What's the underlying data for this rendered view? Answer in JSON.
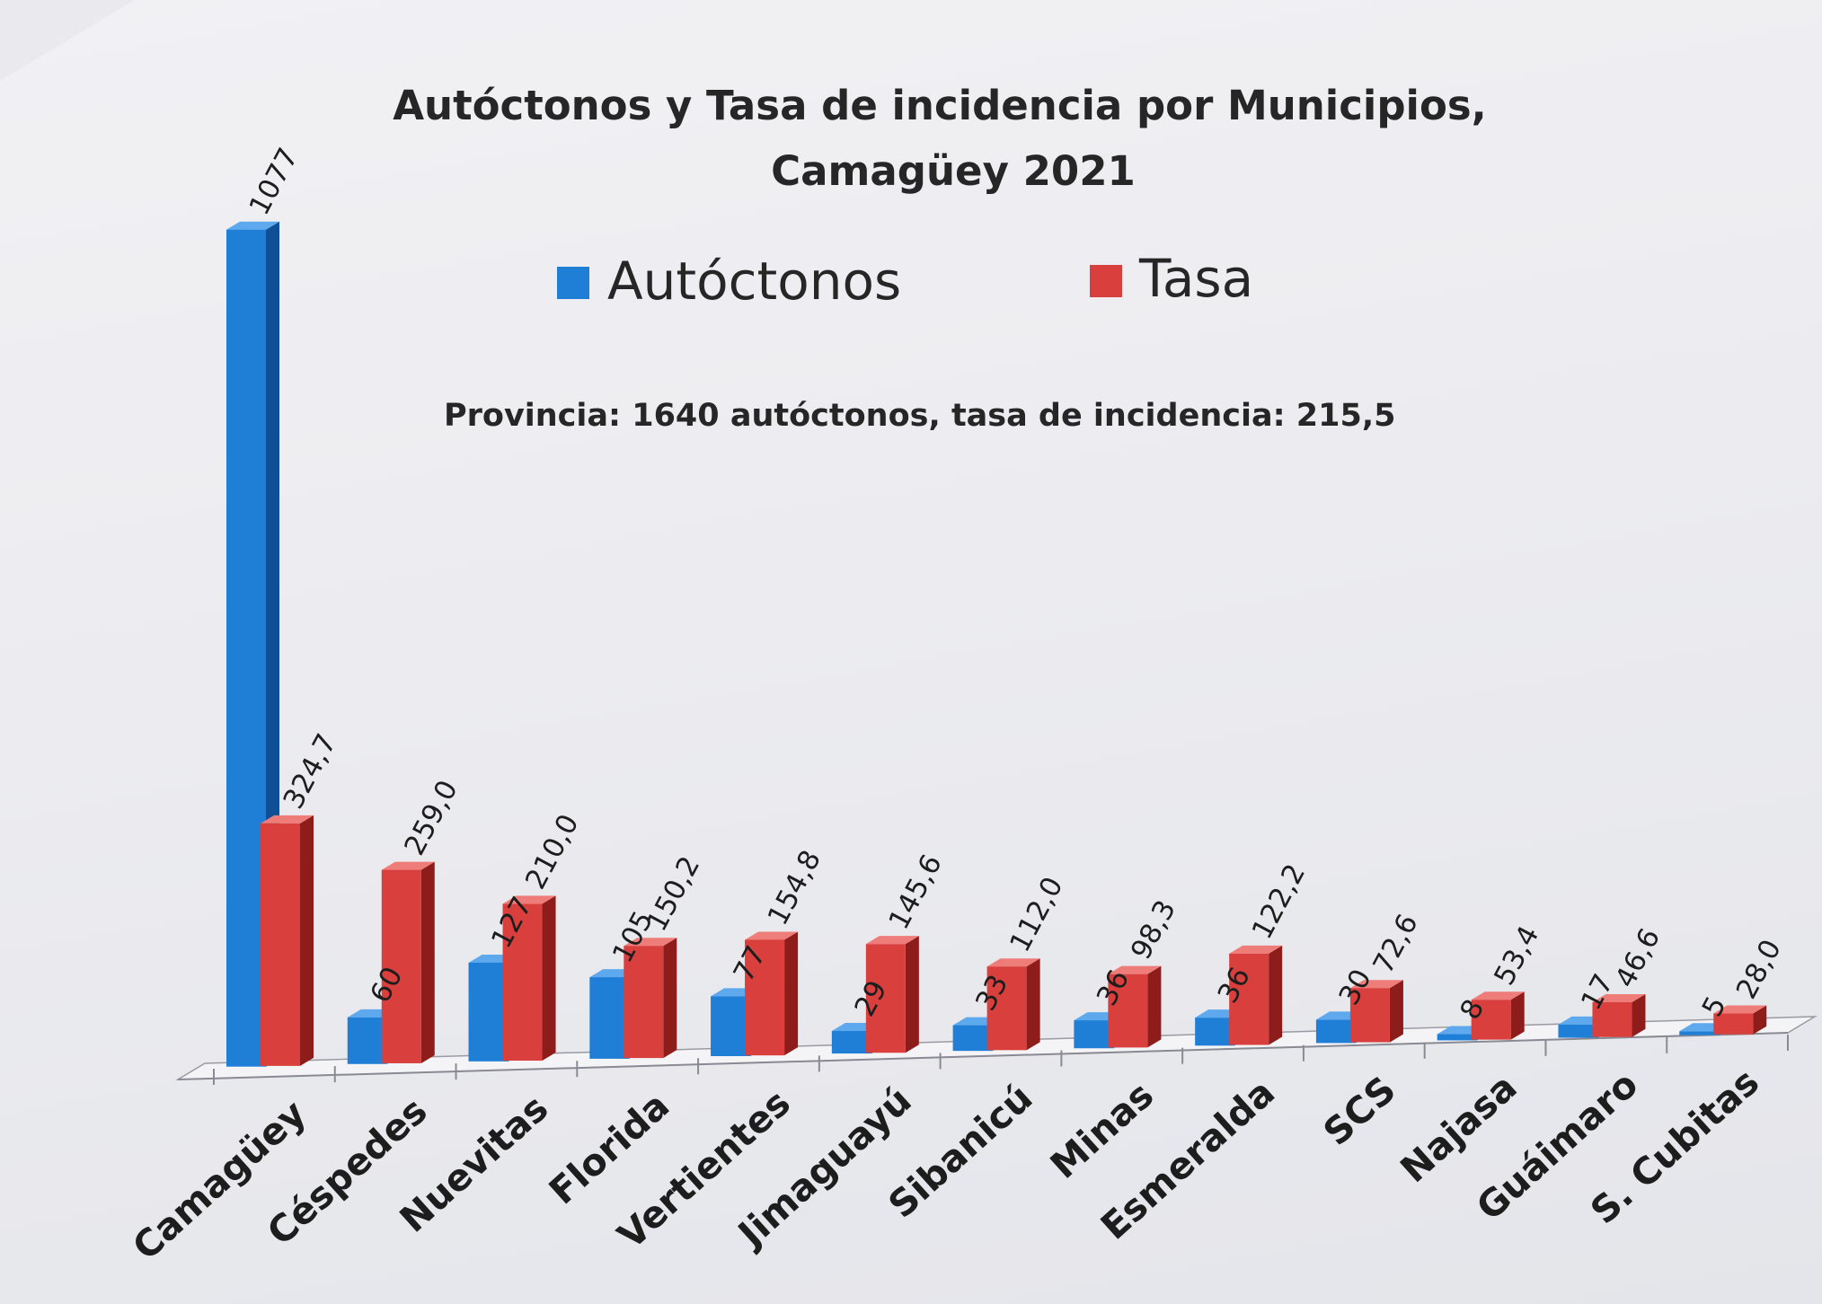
{
  "chart_data": {
    "type": "bar",
    "title": [
      "Autóctonos y Tasa de incidencia por Municipios,",
      "Camagüey 2021"
    ],
    "annotation": "Provincia: 1640 autóctonos, tasa de incidencia: 215,5",
    "categories": [
      "Camagüey",
      "Céspedes",
      "Nuevitas",
      "Florida",
      "Vertientes",
      "Jimaguayú",
      "Sibanicú",
      "Minas",
      "Esmeralda",
      "SCS",
      "Najasa",
      "Guáimaro",
      "S. Cubitas"
    ],
    "series": [
      {
        "name": "Autóctonos",
        "values": [
          1077,
          60,
          127,
          105,
          77,
          29,
          33,
          36,
          36,
          30,
          8,
          17,
          5
        ],
        "labels": [
          "1077",
          "60",
          "127",
          "105",
          "77",
          "29",
          "33",
          "36",
          "36",
          "30",
          "8",
          "17",
          "5"
        ],
        "color": "#1f7fd6"
      },
      {
        "name": "Tasa",
        "values": [
          324.7,
          259.0,
          210.0,
          150.2,
          154.8,
          145.6,
          112.0,
          98.3,
          122.2,
          72.6,
          53.4,
          46.6,
          28.0
        ],
        "labels": [
          "324,7",
          "259,0",
          "210,0",
          "150,2",
          "154,8",
          "145,6",
          "112,0",
          "98,3",
          "122,2",
          "72,6",
          "53,4",
          "46,6",
          "28,0"
        ],
        "color": "#d9403d"
      }
    ],
    "legend_position": "top-center",
    "grid": false
  },
  "colors": {
    "autoctonos_front": "#1f7fd6",
    "autoctonos_side": "#0f4f95",
    "autoctonos_top": "#5ea9ee",
    "tasa_front": "#d9403d",
    "tasa_side": "#8e1c1b",
    "tasa_top": "#ee7d79",
    "text": "#1d1d1d"
  }
}
